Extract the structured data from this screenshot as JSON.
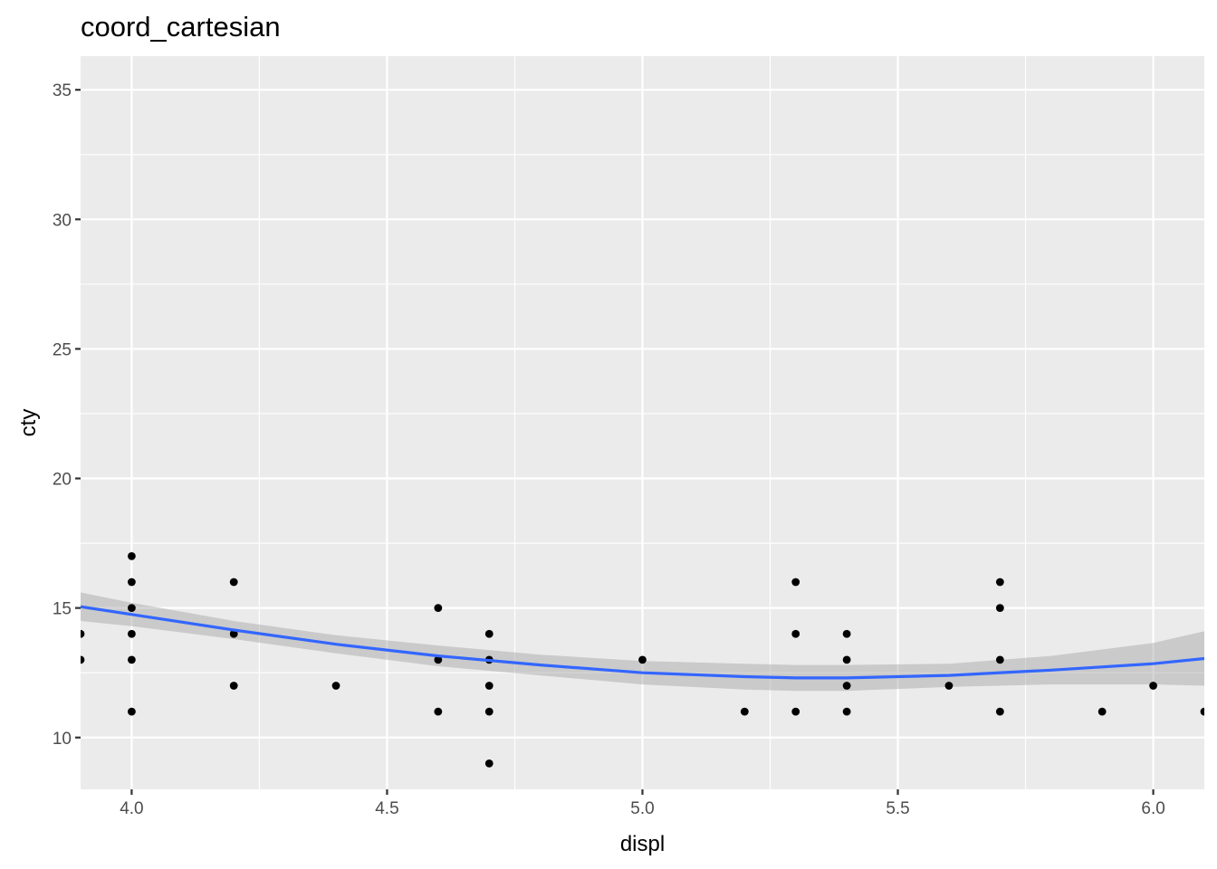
{
  "chart_data": {
    "type": "scatter",
    "title": "coord_cartesian",
    "xlabel": "displ",
    "ylabel": "cty",
    "xlim": [
      3.9,
      6.1
    ],
    "ylim": [
      8,
      36.3
    ],
    "x_ticks": [
      {
        "value": 4.0,
        "label": "4.0"
      },
      {
        "value": 4.5,
        "label": "4.5"
      },
      {
        "value": 5.0,
        "label": "5.0"
      },
      {
        "value": 5.5,
        "label": "5.5"
      },
      {
        "value": 6.0,
        "label": "6.0"
      }
    ],
    "y_ticks": [
      {
        "value": 10,
        "label": "10"
      },
      {
        "value": 15,
        "label": "15"
      },
      {
        "value": 20,
        "label": "20"
      },
      {
        "value": 25,
        "label": "25"
      },
      {
        "value": 30,
        "label": "30"
      },
      {
        "value": 35,
        "label": "35"
      }
    ],
    "grid": true,
    "points": [
      {
        "x": 3.9,
        "y": 14
      },
      {
        "x": 3.9,
        "y": 13
      },
      {
        "x": 4.0,
        "y": 17
      },
      {
        "x": 4.0,
        "y": 16
      },
      {
        "x": 4.0,
        "y": 15
      },
      {
        "x": 4.0,
        "y": 14
      },
      {
        "x": 4.0,
        "y": 13
      },
      {
        "x": 4.0,
        "y": 11
      },
      {
        "x": 4.2,
        "y": 16
      },
      {
        "x": 4.2,
        "y": 14
      },
      {
        "x": 4.2,
        "y": 12
      },
      {
        "x": 4.4,
        "y": 12
      },
      {
        "x": 4.6,
        "y": 15
      },
      {
        "x": 4.6,
        "y": 13
      },
      {
        "x": 4.6,
        "y": 11
      },
      {
        "x": 4.7,
        "y": 14
      },
      {
        "x": 4.7,
        "y": 13
      },
      {
        "x": 4.7,
        "y": 12
      },
      {
        "x": 4.7,
        "y": 11
      },
      {
        "x": 4.7,
        "y": 9
      },
      {
        "x": 5.0,
        "y": 13
      },
      {
        "x": 5.2,
        "y": 11
      },
      {
        "x": 5.3,
        "y": 16
      },
      {
        "x": 5.3,
        "y": 14
      },
      {
        "x": 5.3,
        "y": 11
      },
      {
        "x": 5.4,
        "y": 14
      },
      {
        "x": 5.4,
        "y": 13
      },
      {
        "x": 5.4,
        "y": 12
      },
      {
        "x": 5.4,
        "y": 11
      },
      {
        "x": 5.6,
        "y": 12
      },
      {
        "x": 5.7,
        "y": 16
      },
      {
        "x": 5.7,
        "y": 15
      },
      {
        "x": 5.7,
        "y": 13
      },
      {
        "x": 5.7,
        "y": 11
      },
      {
        "x": 5.9,
        "y": 11
      },
      {
        "x": 6.0,
        "y": 12
      },
      {
        "x": 6.1,
        "y": 11
      }
    ],
    "smooth": {
      "method": "loess",
      "x": [
        3.9,
        4.0,
        4.2,
        4.4,
        4.6,
        4.8,
        5.0,
        5.2,
        5.3,
        5.4,
        5.6,
        5.8,
        6.0,
        6.1
      ],
      "y": [
        15.05,
        14.75,
        14.15,
        13.6,
        13.15,
        12.8,
        12.5,
        12.35,
        12.3,
        12.3,
        12.4,
        12.6,
        12.85,
        13.05
      ],
      "lower": [
        14.5,
        14.3,
        13.8,
        13.25,
        12.75,
        12.4,
        12.05,
        11.85,
        11.8,
        11.8,
        11.95,
        12.05,
        12.05,
        12.0
      ],
      "upper": [
        15.6,
        15.2,
        14.5,
        13.95,
        13.55,
        13.2,
        12.95,
        12.85,
        12.8,
        12.8,
        12.85,
        13.15,
        13.65,
        14.1
      ]
    },
    "colors": {
      "panel": "#ebebeb",
      "grid": "#ffffff",
      "point": "#000000",
      "line": "#3366ff",
      "ribbon": "#999999"
    }
  }
}
